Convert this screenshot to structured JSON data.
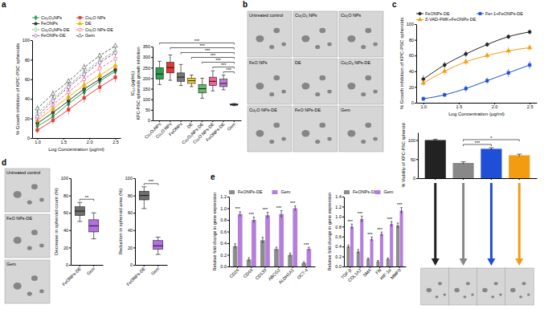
{
  "panel_labels": [
    "a",
    "b",
    "c",
    "d",
    "e"
  ],
  "image_panels": [
    {
      "panel": "b",
      "labels": [
        "Untreated control",
        "Cu₂O₃ NPs",
        "Cu₂O NPs",
        "FeO NPs",
        "DE",
        "Cu₂O₃ NPs-DE",
        "Cu₂O NPs-DE",
        "FeO NPs-DE",
        "Gem"
      ]
    },
    {
      "panel": "d",
      "labels": [
        "Untreated control",
        "FeO NPs-DE",
        "Gem"
      ]
    }
  ],
  "chart_data": [
    {
      "type": "line",
      "xlabel": "Log Concentration (µg/ml)",
      "ylabel": "% Growth inhibition of KPC-PSC spheroids",
      "x": [
        1.0,
        1.3,
        1.6,
        1.9,
        2.2,
        2.5
      ],
      "xlim": [
        0.9,
        2.6
      ],
      "xticks": [
        {
          "value": 1,
          "label": "1.0"
        },
        1.5,
        {
          "value": 2,
          "label": "2.0"
        },
        2.5
      ],
      "ylim": [
        0,
        100
      ],
      "yticks": [
        0,
        20,
        40,
        60,
        80,
        100
      ],
      "legend": "top",
      "series": [
        {
          "name": "Cu₂O₃NPs",
          "color": "#2e9e4f",
          "marker": "diamond",
          "line_style": "solid",
          "values": [
            12,
            22,
            35,
            47,
            58,
            68
          ],
          "errors": [
            4,
            5,
            5,
            6,
            5,
            4
          ]
        },
        {
          "name": "Cu₂O NPs",
          "color": "#e53935",
          "marker": "square",
          "line_style": "solid",
          "values": [
            8,
            18,
            29,
            41,
            52,
            62
          ],
          "errors": [
            3,
            4,
            5,
            5,
            6,
            5
          ]
        },
        {
          "name": "FeONPs",
          "color": "#333333",
          "marker": "circle",
          "line_style": "solid",
          "values": [
            15,
            26,
            38,
            50,
            60,
            70
          ],
          "errors": [
            4,
            4,
            5,
            5,
            5,
            4
          ]
        },
        {
          "name": "DE",
          "color": "#e6b800",
          "marker": "triangle",
          "line_style": "solid",
          "values": [
            18,
            30,
            42,
            54,
            64,
            74
          ],
          "errors": [
            5,
            5,
            4,
            5,
            4,
            4
          ]
        },
        {
          "name": "Cu₂O₃NPs-DE",
          "color": "#66bb6a",
          "marker": "diamond-open",
          "line_style": "dashed",
          "values": [
            25,
            40,
            54,
            67,
            79,
            89
          ],
          "errors": [
            5,
            6,
            5,
            5,
            4,
            4
          ]
        },
        {
          "name": "Cu₂O NPs-DE",
          "color": "#f06292",
          "marker": "square-open",
          "line_style": "dashed",
          "values": [
            20,
            34,
            47,
            60,
            71,
            81
          ],
          "errors": [
            4,
            5,
            6,
            5,
            5,
            4
          ]
        },
        {
          "name": "FeONPs-DE",
          "color": "#8e44ad",
          "marker": "circle-open",
          "line_style": "dashed",
          "values": [
            22,
            38,
            52,
            65,
            77,
            87
          ],
          "errors": [
            6,
            5,
            5,
            4,
            4,
            3
          ]
        },
        {
          "name": "Gem",
          "color": "#555555",
          "marker": "triangle-open",
          "line_style": "dashed",
          "values": [
            30,
            45,
            58,
            72,
            84,
            94
          ],
          "errors": [
            4,
            4,
            3,
            4,
            3,
            3
          ]
        }
      ]
    },
    {
      "type": "box",
      "ylabel": [
        "IC₅₀ (µg/mL)",
        "KPC-PSC spheroids growth inhibition"
      ],
      "categories": [
        "Cu₂O₃NPs",
        "Cu₂O NPs",
        "FeONPs",
        "DE",
        "Cu₂O₃NPs-DE",
        "Cu₂O NPs-DE",
        "FeONPs-DE",
        "Gem"
      ],
      "colors": [
        "#2e9e4f",
        "#e53935",
        "#777777",
        "#f2d02b",
        "#66bb6a",
        "#f06292",
        "#c07ad8",
        "#9b59b6"
      ],
      "boxes": [
        {
          "min": 170,
          "q1": 195,
          "median": 220,
          "q3": 250,
          "max": 280
        },
        {
          "min": 190,
          "q1": 225,
          "median": 250,
          "q3": 275,
          "max": 310
        },
        {
          "min": 165,
          "q1": 185,
          "median": 205,
          "q3": 225,
          "max": 265
        },
        {
          "min": 160,
          "q1": 175,
          "median": 188,
          "q3": 200,
          "max": 215
        },
        {
          "min": 105,
          "q1": 130,
          "median": 150,
          "q3": 170,
          "max": 200
        },
        {
          "min": 140,
          "q1": 165,
          "median": 185,
          "q3": 205,
          "max": 235
        },
        {
          "min": 145,
          "q1": 160,
          "median": 175,
          "q3": 195,
          "max": 215
        },
        {
          "min": 70,
          "q1": 72,
          "median": 75,
          "q3": 78,
          "max": 80
        }
      ],
      "ylim": [
        0,
        350
      ],
      "yticks": [
        0,
        50,
        100,
        150,
        200,
        250,
        300,
        350
      ],
      "significance": [
        {
          "pair": [
            6,
            7
          ],
          "label": "***"
        },
        {
          "pair": [
            5,
            7
          ],
          "label": "***"
        },
        {
          "pair": [
            4,
            7
          ],
          "label": "***"
        },
        {
          "pair": [
            3,
            7
          ],
          "label": "***"
        },
        {
          "pair": [
            2,
            7
          ],
          "label": "***"
        },
        {
          "pair": [
            1,
            7
          ],
          "label": "***"
        },
        {
          "pair": [
            0,
            7
          ],
          "label": "***"
        }
      ]
    },
    {
      "type": "line",
      "xlabel": "Log Concentration (µg/ml)",
      "ylabel": "% Growth inhibition of KPC-PSC spheroids",
      "x": [
        1.0,
        1.3,
        1.6,
        1.9,
        2.2,
        2.5
      ],
      "xlim": [
        0.9,
        2.6
      ],
      "xticks": [
        {
          "value": 1,
          "label": "1.0"
        },
        1.5,
        {
          "value": 2,
          "label": "2.0"
        },
        2.5
      ],
      "ylim": [
        0,
        100
      ],
      "yticks": [
        0,
        20,
        40,
        60,
        80,
        100
      ],
      "legend": "top",
      "series": [
        {
          "name": "FeONPs-DE",
          "color": "#222222",
          "marker": "circle",
          "line_style": "solid",
          "values": [
            30,
            48,
            62,
            74,
            84,
            90
          ],
          "errors": [
            5,
            4,
            4,
            3,
            3,
            3
          ]
        },
        {
          "name": "Fer-1+FeONPs-DE",
          "color": "#1f4fd6",
          "marker": "square",
          "line_style": "solid",
          "values": [
            5,
            10,
            18,
            28,
            38,
            48
          ],
          "errors": [
            3,
            3,
            4,
            4,
            5,
            5
          ]
        },
        {
          "name": "Z-VAD-FMK+FeONPs-DE",
          "color": "#f39c12",
          "marker": "triangle",
          "line_style": "solid",
          "values": [
            25,
            40,
            52,
            60,
            66,
            70
          ],
          "errors": [
            4,
            5,
            4,
            4,
            5,
            4
          ]
        }
      ]
    },
    {
      "type": "bar",
      "ylabel": "% Viability of KPC-PSC spheroid",
      "categories": [
        null,
        null,
        null,
        null
      ],
      "values": [
        100,
        40,
        77,
        60
      ],
      "errors": [
        2,
        3,
        3,
        3
      ],
      "colors": [
        "#222222",
        "#888888",
        "#1f4fd6",
        "#f39c12"
      ],
      "ylim": [
        0,
        120
      ],
      "yticks": [
        0,
        50,
        100
      ],
      "tick_labels": "y",
      "significance": [
        {
          "pair": [
            1,
            2
          ],
          "label": "***"
        },
        {
          "pair": [
            1,
            3
          ],
          "label": "*"
        }
      ]
    },
    {
      "type": "box",
      "ylabel": "Decrease in spheroid count (%)",
      "categories": [
        "FeONPs-DE",
        "Gem"
      ],
      "colors": [
        "#6e6e6e",
        "#b36ee0"
      ],
      "boxes": [
        {
          "min": 50,
          "q1": 57,
          "median": 62,
          "q3": 67,
          "max": 72
        },
        {
          "min": 30,
          "q1": 38,
          "median": 45,
          "q3": 52,
          "max": 60
        }
      ],
      "ylim": [
        0,
        100
      ],
      "yticks": [
        0,
        20,
        40,
        60,
        80,
        100
      ],
      "significance": [
        {
          "pair": [
            0,
            1
          ],
          "label": "**"
        }
      ]
    },
    {
      "type": "box",
      "ylabel": "Reduction in spheroid area (%)",
      "categories": [
        "FeONPs-DE",
        "Gem"
      ],
      "colors": [
        "#6e6e6e",
        "#b36ee0"
      ],
      "boxes": [
        {
          "min": 65,
          "q1": 75,
          "median": 80,
          "q3": 85,
          "max": 90
        },
        {
          "min": 12,
          "q1": 18,
          "median": 22,
          "q3": 28,
          "max": 32
        }
      ],
      "ylim": [
        0,
        100
      ],
      "yticks": [
        0,
        20,
        40,
        60,
        80,
        100
      ],
      "significance": [
        {
          "pair": [
            0,
            1
          ],
          "label": "***"
        }
      ]
    },
    {
      "type": "bar",
      "ylabel": "Relative fold change in gene expression",
      "categories": [
        "CD24",
        "CD44",
        "CD133",
        "ABCG2",
        "ALDH1A1",
        "OCT-4"
      ],
      "series": [
        {
          "name": "FeONPs-DE",
          "color": "#8c8c8c",
          "values": [
            0.35,
            0.12,
            0.45,
            0.3,
            0.2,
            0.06
          ],
          "errors": [
            0.04,
            0.03,
            0.05,
            0.03,
            0.03,
            0.02
          ]
        },
        {
          "name": "Gem",
          "color": "#b57edc",
          "values": [
            0.9,
            0.8,
            0.88,
            0.9,
            1.0,
            0.3
          ],
          "errors": [
            0.04,
            0.05,
            0.05,
            0.06,
            0.04,
            0.03
          ]
        }
      ],
      "ylim": [
        0,
        1.2
      ],
      "yticks": [
        {
          "value": 0,
          "label": "0.0"
        },
        0.2,
        0.4,
        0.6,
        0.8,
        {
          "value": 1,
          "label": "1.0"
        },
        1.2
      ],
      "legend": "top",
      "significance_labels": [
        "***",
        "***",
        "***",
        "***",
        "***",
        "***"
      ]
    },
    {
      "type": "bar",
      "ylabel": "Relative fold change in gene expression",
      "categories": [
        "TGF-β",
        "COL1A2",
        "SMA",
        "FN",
        "HIF-1α",
        "MMP9"
      ],
      "series": [
        {
          "name": "FeONPs-DE",
          "color": "#8c8c8c",
          "values": [
            0.4,
            0.3,
            0.15,
            0.1,
            0.15,
            0.82
          ],
          "errors": [
            0.03,
            0.04,
            0.02,
            0.02,
            0.02,
            0.05
          ]
        },
        {
          "name": "Gem",
          "color": "#b57edc",
          "values": [
            0.8,
            0.95,
            0.55,
            0.65,
            0.85,
            1.12
          ],
          "errors": [
            0.05,
            0.06,
            0.04,
            0.04,
            0.05,
            0.06
          ]
        }
      ],
      "ylim": [
        0,
        1.4
      ],
      "yticks": [
        {
          "value": 0,
          "label": "0.0"
        },
        0.2,
        0.4,
        0.6,
        0.8,
        {
          "value": 1,
          "label": "1.0"
        },
        1.2,
        1.4
      ],
      "legend": "top",
      "significance_labels": [
        "***",
        "***",
        "***",
        "***",
        "***",
        "***"
      ]
    }
  ]
}
